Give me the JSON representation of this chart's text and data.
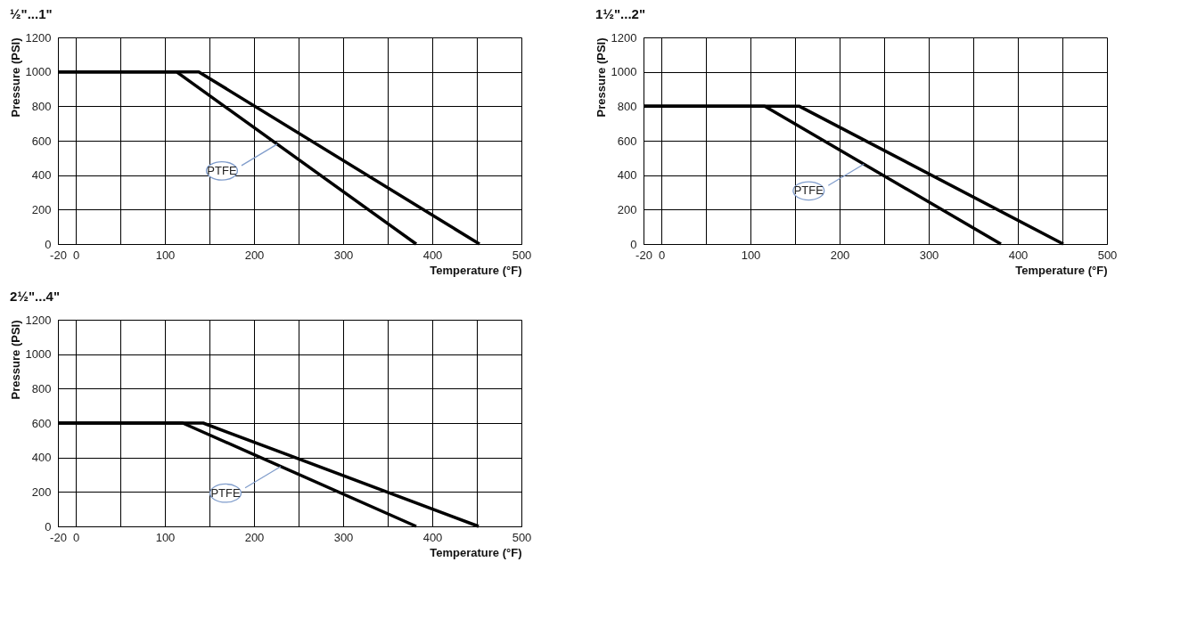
{
  "chart_data": [
    {
      "type": "line",
      "title": "½\"...1\"",
      "xlabel": "Temperature (°F)",
      "ylabel": "Pressure (PSI)",
      "xlim": [
        -20,
        500
      ],
      "ylim": [
        0,
        1200
      ],
      "xticks": [
        -20,
        0,
        {
          "value": 50,
          "label": null
        },
        100,
        {
          "value": 150,
          "label": null
        },
        200,
        {
          "value": 250,
          "label": null
        },
        300,
        {
          "value": 350,
          "label": null
        },
        400,
        {
          "value": 450,
          "label": null
        },
        500
      ],
      "yticks": [
        0,
        200,
        400,
        600,
        800,
        1000,
        1200
      ],
      "grid": true,
      "marker": "none",
      "line_style": "solid",
      "series": [
        {
          "name": "PTFE",
          "color": "#000000",
          "x": [
            -20,
            113,
            382
          ],
          "values": [
            1000,
            1000,
            0
          ]
        },
        {
          "color": "#000000",
          "x": [
            -20,
            138,
            453
          ],
          "values": [
            1000,
            1000,
            0
          ]
        }
      ]
    },
    {
      "type": "line",
      "title": "1½\"...2\"",
      "xlabel": "Temperature (°F)",
      "ylabel": "Pressure (PSI)",
      "xlim": [
        -20,
        500
      ],
      "ylim": [
        0,
        1200
      ],
      "xticks": [
        -20,
        0,
        {
          "value": 50,
          "label": null
        },
        100,
        {
          "value": 150,
          "label": null
        },
        200,
        {
          "value": 250,
          "label": null
        },
        300,
        {
          "value": 350,
          "label": null
        },
        400,
        {
          "value": 450,
          "label": null
        },
        500
      ],
      "yticks": [
        0,
        200,
        400,
        600,
        800,
        1000,
        1200
      ],
      "grid": true,
      "marker": "none",
      "line_style": "solid",
      "series": [
        {
          "name": "PTFE",
          "color": "#000000",
          "x": [
            -20,
            116,
            381
          ],
          "values": [
            800,
            800,
            0
          ]
        },
        {
          "color": "#000000",
          "x": [
            -20,
            155,
            451
          ],
          "values": [
            800,
            800,
            0
          ]
        }
      ]
    },
    {
      "type": "line",
      "title": "2½\"...4\"",
      "xlabel": "Temperature (°F)",
      "ylabel": "Pressure (PSI)",
      "xlim": [
        -20,
        500
      ],
      "ylim": [
        0,
        1200
      ],
      "xticks": [
        -20,
        0,
        {
          "value": 50,
          "label": null
        },
        100,
        {
          "value": 150,
          "label": null
        },
        200,
        {
          "value": 250,
          "label": null
        },
        300,
        {
          "value": 350,
          "label": null
        },
        400,
        {
          "value": 450,
          "label": null
        },
        500
      ],
      "yticks": [
        0,
        200,
        400,
        600,
        800,
        1000,
        1200
      ],
      "grid": true,
      "marker": "none",
      "line_style": "solid",
      "series": [
        {
          "name": "PTFE",
          "color": "#000000",
          "x": [
            -20,
            120,
            382
          ],
          "values": [
            600,
            600,
            0
          ]
        },
        {
          "color": "#000000",
          "x": [
            -20,
            143,
            452
          ],
          "values": [
            600,
            600,
            0
          ]
        }
      ]
    }
  ]
}
